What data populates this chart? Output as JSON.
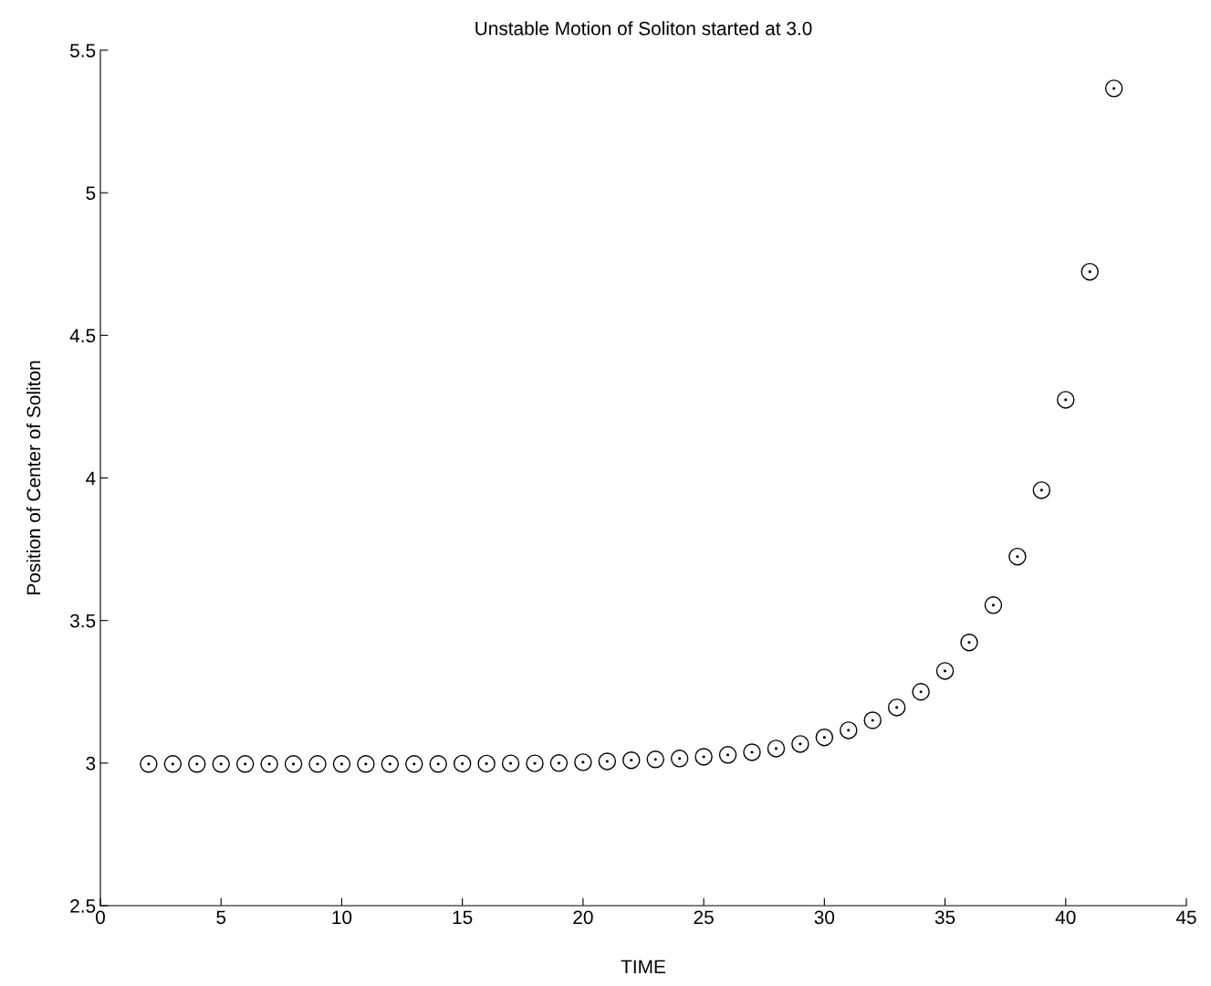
{
  "chart_data": {
    "type": "scatter",
    "title": "Unstable Motion of Soliton started at 3.0",
    "xlabel": "TIME",
    "ylabel": "Position of Center of Soliton",
    "x": [
      2,
      3,
      4,
      5,
      6,
      7,
      8,
      9,
      10,
      11,
      12,
      13,
      14,
      15,
      16,
      17,
      18,
      19,
      20,
      21,
      22,
      23,
      24,
      25,
      26,
      27,
      28,
      29,
      30,
      31,
      32,
      33,
      34,
      35,
      36,
      37,
      38,
      39,
      40,
      41,
      42
    ],
    "series": [
      {
        "color": "#000000",
        "values": [
          2.997,
          2.997,
          2.997,
          2.997,
          2.997,
          2.997,
          2.997,
          2.997,
          2.997,
          2.997,
          2.997,
          2.997,
          2.997,
          2.998,
          2.998,
          2.999,
          2.999,
          3.0,
          3.003,
          3.006,
          3.01,
          3.013,
          3.016,
          3.022,
          3.029,
          3.038,
          3.051,
          3.067,
          3.09,
          3.115,
          3.15,
          3.195,
          3.25,
          3.323,
          3.423,
          3.554,
          3.724,
          3.957,
          4.274,
          4.723,
          5.366
        ]
      }
    ],
    "xlim": [
      0,
      45
    ],
    "xticks": [
      0,
      5,
      10,
      15,
      20,
      25,
      30,
      35,
      40,
      45
    ],
    "ylim": [
      2.5,
      5.5
    ],
    "yticks": [
      2.5,
      3,
      3.5,
      4,
      4.5,
      5,
      5.5
    ],
    "marker": "circle",
    "grid": false,
    "legend": false
  }
}
